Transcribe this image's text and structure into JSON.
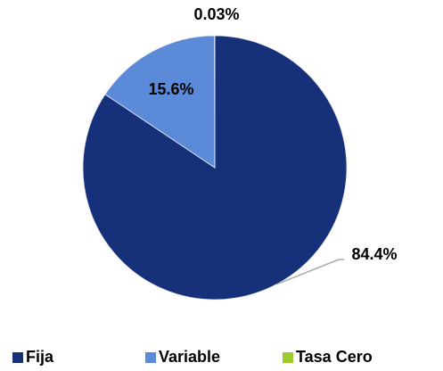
{
  "chart_data": {
    "type": "pie",
    "categories": [
      "Fija",
      "Variable",
      "Tasa Cero"
    ],
    "values": [
      84.4,
      15.6,
      0.03
    ],
    "value_labels": [
      "84.4%",
      "15.6%",
      "0.03%"
    ],
    "colors": [
      "#16307a",
      "#5a8ad8",
      "#9ccc30"
    ],
    "legend": "bottom"
  }
}
